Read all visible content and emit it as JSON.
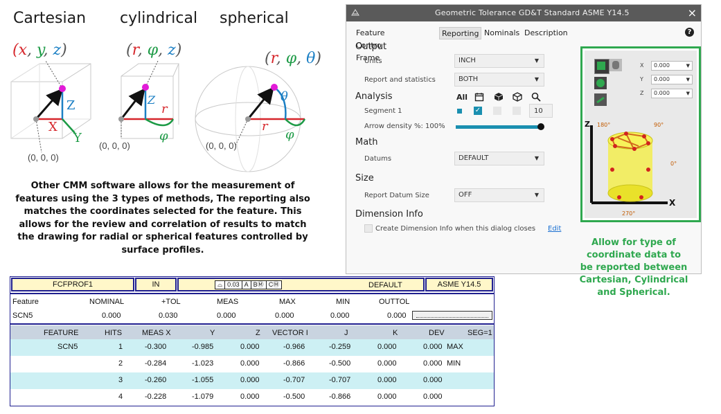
{
  "figure": {
    "titles": [
      "Cartesian",
      "cylindrical",
      "spherical"
    ],
    "cartesian": {
      "tuple_open": "(",
      "x": "x",
      "y": "y",
      "z": "z",
      "tuple_close": ")",
      "axis_x": "X",
      "axis_y": "Y",
      "axis_z": "Z",
      "origin": "(0, 0, 0)"
    },
    "cylindrical": {
      "tuple_open": "(",
      "r": "r",
      "phi": "φ",
      "z": "z",
      "tuple_close": ")",
      "axis_r": "r",
      "axis_z": "Z",
      "axis_phi": "φ",
      "origin": "(0, 0, 0)"
    },
    "spherical": {
      "tuple_open": "(",
      "r": "r",
      "phi": "φ",
      "theta": "θ",
      "tuple_close": ")",
      "axis_r": "r",
      "axis_theta": "θ",
      "axis_phi": "φ",
      "origin": "(0, 0, 0)"
    },
    "colors": {
      "red": "#d6262b",
      "green": "#1c9a45",
      "blue": "#1b7fc4",
      "magenta": "#e21bd8"
    }
  },
  "description": "Other CMM software allows for the measurement of features using the 3 types of methods, The reporting also matches the coordinates selected for the feature. This allows for the review and correlation of results to match the drawing for radial or spherical features controlled by surface profiles.",
  "dialog": {
    "title": "Geometric Tolerance  GD&T Standard ASME Y14.5",
    "close_icon": "×",
    "help_icon": "?",
    "tabs": [
      {
        "label": "Feature Contro Frame",
        "active": false
      },
      {
        "label": "Reporting",
        "active": true
      },
      {
        "label": "Nominals",
        "active": false
      },
      {
        "label": "Description",
        "active": false
      }
    ],
    "output": {
      "heading": "Output",
      "units_label": "Units",
      "units_value": "INCH",
      "report_label": "Report and statistics",
      "report_value": "BOTH"
    },
    "analysis": {
      "heading": "Analysis",
      "all_label": "All",
      "segment_label": "Segment 1",
      "segment_value": "10",
      "arrow_label": "Arrow density %: 100%",
      "arrow_density_percent": 100
    },
    "math": {
      "heading": "Math",
      "datums_label": "Datums",
      "datums_value": "DEFAULT"
    },
    "size": {
      "heading": "Size",
      "report_datum_label": "Report Datum Size",
      "report_datum_value": "OFF"
    },
    "dimension_info": {
      "heading": "Dimension Info",
      "checkbox_label": "Create Dimension Info when this dialog closes",
      "edit_link": "Edit"
    },
    "preview": {
      "x_label": "X",
      "y_label": "Y",
      "z_label": "Z",
      "x_value": "0.000",
      "y_value": "0.000",
      "z_value": "0.000",
      "axis_z": "Z",
      "axis_x": "X",
      "deg_180": "180°",
      "deg_90": "90°",
      "deg_0": "0°",
      "deg_270": "270°"
    }
  },
  "green_note": "Allow for type of coordinate data to be reported between Cartesian, Cylindrical and Spherical.",
  "report": {
    "header": {
      "name": "FCFPROF1",
      "units": "IN",
      "fcf": [
        "0.03",
        "A",
        "BⓂ",
        "CⓂ"
      ],
      "datum": "DEFAULT",
      "standard": "ASME Y14.5"
    },
    "summary_cols": [
      "Feature",
      "NOMINAL",
      "+TOL",
      "MEAS",
      "MAX",
      "MIN",
      "OUTTOL"
    ],
    "summary_row": [
      "SCN5",
      "0.000",
      "0.030",
      "0.000",
      "0.000",
      "0.000",
      "0.000"
    ],
    "detail_cols": [
      "FEATURE",
      "HITS",
      "MEAS X",
      "Y",
      "Z",
      "VECTOR I",
      "J",
      "K",
      "DEV",
      "SEG=1"
    ],
    "detail_rows": [
      [
        "SCN5",
        "1",
        "-0.300",
        "-0.985",
        "0.000",
        "-0.966",
        "-0.259",
        "0.000",
        "0.000",
        "MAX"
      ],
      [
        "",
        "2",
        "-0.284",
        "-1.023",
        "0.000",
        "-0.866",
        "-0.500",
        "0.000",
        "0.000",
        "MIN"
      ],
      [
        "",
        "3",
        "-0.260",
        "-1.055",
        "0.000",
        "-0.707",
        "-0.707",
        "0.000",
        "0.000",
        ""
      ],
      [
        "",
        "4",
        "-0.228",
        "-1.079",
        "0.000",
        "-0.500",
        "-0.866",
        "0.000",
        "0.000",
        ""
      ]
    ]
  }
}
